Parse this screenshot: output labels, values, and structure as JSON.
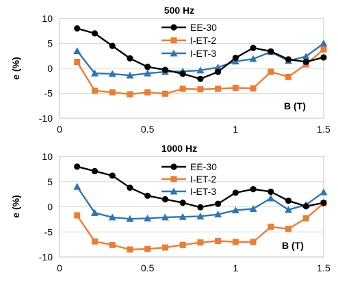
{
  "chart_data": [
    {
      "type": "line",
      "title": "500 Hz",
      "xlabel": "B (T)",
      "ylabel": "e (%)",
      "xlim": [
        0,
        1.5
      ],
      "ylim": [
        -10,
        10
      ],
      "xticks": [
        "0",
        "0.5",
        "1",
        "1.5"
      ],
      "yticks": [
        "10",
        "5",
        "0",
        "-5",
        "-10"
      ],
      "grid": "horizontal",
      "legend": "top-center",
      "x": [
        0.1,
        0.2,
        0.3,
        0.4,
        0.5,
        0.6,
        0.7,
        0.8,
        0.9,
        1.0,
        1.1,
        1.2,
        1.3,
        1.4,
        1.5
      ],
      "series": [
        {
          "name": "EE-30",
          "color": "#000000",
          "marker": "circle",
          "values": [
            8.0,
            7.0,
            4.5,
            2.0,
            0.3,
            -0.3,
            -1.1,
            -2.1,
            -0.7,
            2.1,
            4.1,
            3.4,
            1.8,
            1.3,
            2.2
          ]
        },
        {
          "name": "I-ET-2",
          "color": "#ed7d31",
          "marker": "square",
          "values": [
            1.3,
            -4.5,
            -4.8,
            -5.2,
            -4.8,
            -5.1,
            -4.1,
            -4.2,
            -4.1,
            -3.9,
            -4.0,
            -0.7,
            -1.7,
            0.8,
            3.8
          ]
        },
        {
          "name": "I-ET-3",
          "color": "#2e75b6",
          "marker": "triangle",
          "values": [
            3.5,
            -1.0,
            -1.1,
            -1.4,
            -1.0,
            -0.7,
            -0.6,
            -0.4,
            0.2,
            1.4,
            1.9,
            3.3,
            1.5,
            2.4,
            5.0
          ]
        }
      ]
    },
    {
      "type": "line",
      "title": "1000 Hz",
      "xlabel": "B (T)",
      "ylabel": "e (%)",
      "xlim": [
        0,
        1.5
      ],
      "ylim": [
        -10,
        10
      ],
      "xticks": [
        "0",
        "0.5",
        "1",
        "1.5"
      ],
      "yticks": [
        "10",
        "5",
        "0",
        "-5",
        "-10"
      ],
      "grid": "horizontal",
      "legend": "top-center",
      "x": [
        0.1,
        0.2,
        0.3,
        0.4,
        0.5,
        0.6,
        0.7,
        0.8,
        0.9,
        1.0,
        1.1,
        1.2,
        1.3,
        1.4,
        1.5
      ],
      "series": [
        {
          "name": "EE-30",
          "color": "#000000",
          "marker": "circle",
          "values": [
            8.0,
            7.1,
            6.2,
            3.8,
            2.2,
            1.5,
            0.8,
            -0.1,
            0.6,
            2.8,
            3.5,
            3.0,
            1.2,
            0.1,
            0.8
          ]
        },
        {
          "name": "I-ET-2",
          "color": "#ed7d31",
          "marker": "square",
          "values": [
            -1.7,
            -6.9,
            -7.6,
            -8.5,
            -8.4,
            -8.1,
            -7.6,
            -7.1,
            -6.8,
            -7.0,
            -7.0,
            -4.0,
            -4.4,
            -2.3,
            0.7
          ]
        },
        {
          "name": "I-ET-3",
          "color": "#2e75b6",
          "marker": "triangle",
          "values": [
            4.0,
            -1.2,
            -2.1,
            -2.4,
            -2.3,
            -2.1,
            -2.0,
            -1.9,
            -1.5,
            -0.7,
            -0.4,
            1.7,
            -0.6,
            0.4,
            2.9
          ]
        }
      ]
    }
  ]
}
